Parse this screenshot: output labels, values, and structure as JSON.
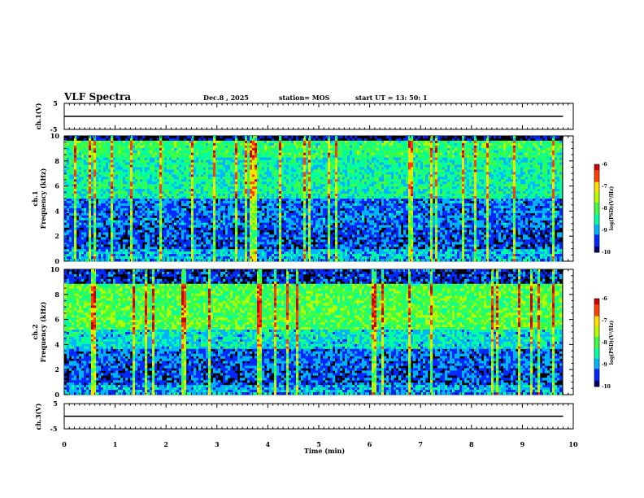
{
  "header": {
    "title": "VLF Spectra",
    "date": "Dec.8 , 2025",
    "station": "station= MOS",
    "start_ut": "start UT = 13: 50: 1"
  },
  "colors": {
    "colormap": [
      "#00006e",
      "#0028ff",
      "#00b4ff",
      "#00ffa0",
      "#40ff40",
      "#b4ff00",
      "#ffe000",
      "#ff4000",
      "#d00000"
    ],
    "background": "#000000",
    "trace": "#000000"
  },
  "chart_data": [
    {
      "type": "line",
      "name": "ch1-waveform",
      "ylabel": "ch.1(V)",
      "ylim": [
        -5,
        5
      ],
      "yticks": [
        "5",
        "-5"
      ],
      "x": [
        0,
        9.8
      ],
      "values": [
        0,
        0
      ]
    },
    {
      "type": "heatmap",
      "name": "ch1-spectrogram",
      "ylabel": "ch.1\nFrequency (kHz)",
      "ylim": [
        0,
        10
      ],
      "yticks": [
        "0",
        "2",
        "4",
        "6",
        "8",
        "10"
      ],
      "xlim": [
        0,
        10
      ],
      "data_x_end": 9.8,
      "colorbar": {
        "label": "log(PSD)(V²/Hz)",
        "ticks": [
          "-6",
          "-7",
          "-8",
          "-9",
          "-10"
        ],
        "range": [
          -10,
          -6
        ]
      }
    },
    {
      "type": "heatmap",
      "name": "ch2-spectrogram",
      "ylabel": "ch.2\nFrequency (kHz)",
      "ylim": [
        0,
        10
      ],
      "yticks": [
        "0",
        "2",
        "4",
        "6",
        "8",
        "10"
      ],
      "xlim": [
        0,
        10
      ],
      "data_x_end": 9.8,
      "colorbar": {
        "label": "log(PSD)(V²/Hz)",
        "ticks": [
          "-6",
          "-7",
          "-8",
          "-9",
          "-10"
        ],
        "range": [
          -10,
          -6
        ]
      }
    },
    {
      "type": "line",
      "name": "ch3-waveform",
      "ylabel": "ch.3(V)",
      "ylim": [
        -5,
        5
      ],
      "yticks": [
        "5",
        "-5"
      ],
      "x": [
        0,
        9.8
      ],
      "values": [
        0,
        0
      ]
    }
  ],
  "xaxis": {
    "label": "Time (min)",
    "ticks": [
      "0",
      "1",
      "2",
      "3",
      "4",
      "5",
      "6",
      "7",
      "8",
      "9",
      "10"
    ],
    "range": [
      0,
      10
    ]
  },
  "cb_label_ch1": "log(PSD)(V²/Hz)",
  "cb_label_ch2": "log(PSD)(V²/Hz)"
}
